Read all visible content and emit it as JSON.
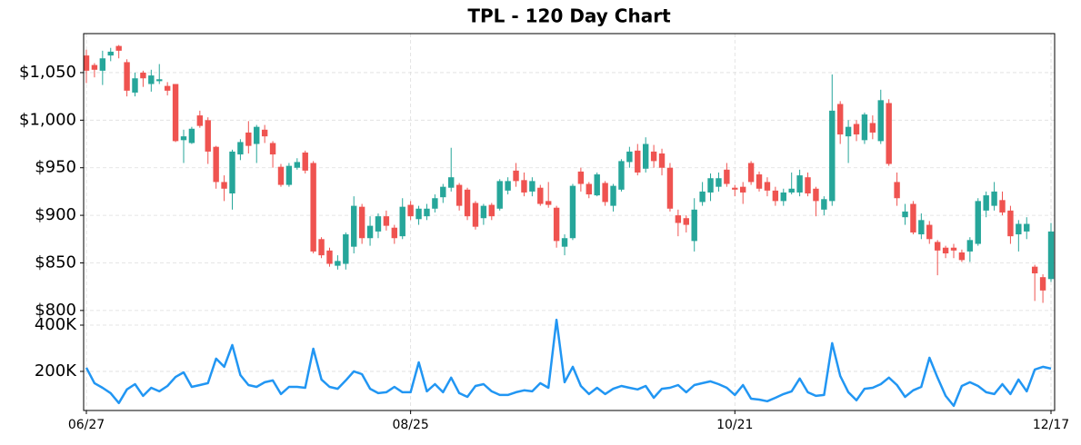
{
  "chart_data": [
    {
      "type": "candlestick",
      "title": "TPL - 120 Day Chart",
      "categories": [
        "06/27",
        null,
        null,
        null,
        null,
        null,
        null,
        null,
        null,
        null,
        null,
        null,
        null,
        null,
        null,
        null,
        null,
        null,
        null,
        null,
        null,
        null,
        null,
        null,
        null,
        null,
        null,
        null,
        null,
        null,
        null,
        null,
        null,
        null,
        null,
        null,
        null,
        null,
        null,
        null,
        "08/25",
        null,
        null,
        null,
        null,
        null,
        null,
        null,
        null,
        null,
        null,
        null,
        null,
        null,
        null,
        null,
        null,
        null,
        null,
        null,
        null,
        null,
        null,
        null,
        null,
        null,
        null,
        null,
        null,
        null,
        null,
        null,
        null,
        null,
        null,
        null,
        null,
        null,
        null,
        null,
        "10/21",
        null,
        null,
        null,
        null,
        null,
        null,
        null,
        null,
        null,
        null,
        null,
        null,
        null,
        null,
        null,
        null,
        null,
        null,
        null,
        null,
        null,
        null,
        null,
        null,
        null,
        null,
        null,
        null,
        null,
        null,
        null,
        null,
        null,
        null,
        null,
        null,
        null,
        null,
        "12/17"
      ],
      "open": [
        1068,
        1058,
        1052,
        1068,
        1078,
        1061,
        1029,
        1050,
        1038,
        1041,
        1036,
        1038,
        979,
        976,
        1005,
        1000,
        972,
        935,
        923,
        964,
        987,
        975,
        990,
        976,
        951,
        932,
        950,
        966,
        955,
        875,
        863,
        847,
        849,
        867,
        909,
        876,
        883,
        899,
        887,
        878,
        911,
        896,
        899,
        907,
        919,
        929,
        932,
        927,
        913,
        897,
        911,
        907,
        926,
        947,
        937,
        925,
        929,
        915,
        908,
        867,
        876,
        946,
        933,
        921,
        934,
        910,
        927,
        956,
        968,
        949,
        967,
        965,
        950,
        900,
        897,
        873,
        914,
        924,
        930,
        948,
        929,
        930,
        955,
        943,
        935,
        926,
        915,
        924,
        924,
        940,
        928,
        906,
        915,
        1017,
        983,
        996,
        979,
        997,
        978,
        1018,
        935,
        898,
        912,
        880,
        890,
        872,
        866,
        866,
        861,
        862,
        870,
        905,
        910,
        916,
        905,
        880,
        883,
        846,
        835,
        833
      ],
      "high": [
        1074,
        1060,
        1073,
        1076,
        1079,
        1064,
        1050,
        1052,
        1053,
        1059,
        1040,
        1038,
        990,
        993,
        1010,
        1003,
        973,
        942,
        969,
        980,
        999,
        995,
        995,
        978,
        954,
        955,
        960,
        968,
        957,
        877,
        866,
        858,
        882,
        920,
        912,
        899,
        902,
        905,
        890,
        918,
        915,
        910,
        912,
        922,
        933,
        971,
        934,
        929,
        915,
        912,
        913,
        938,
        940,
        955,
        945,
        940,
        932,
        935,
        910,
        880,
        933,
        950,
        935,
        945,
        936,
        933,
        959,
        972,
        975,
        982,
        974,
        970,
        955,
        906,
        900,
        918,
        935,
        944,
        945,
        955,
        932,
        935,
        957,
        946,
        940,
        930,
        928,
        945,
        948,
        945,
        930,
        920,
        1048,
        1020,
        1000,
        1000,
        1008,
        1005,
        1032,
        1022,
        945,
        912,
        915,
        902,
        894,
        874,
        868,
        870,
        864,
        877,
        918,
        925,
        935,
        925,
        910,
        895,
        898,
        848,
        838,
        892
      ],
      "low": [
        1039,
        1045,
        1037,
        1062,
        1065,
        1025,
        1025,
        1035,
        1030,
        1038,
        1026,
        977,
        955,
        975,
        992,
        954,
        928,
        915,
        906,
        958,
        965,
        955,
        976,
        950,
        930,
        930,
        948,
        944,
        860,
        855,
        846,
        843,
        843,
        860,
        870,
        868,
        876,
        884,
        870,
        875,
        895,
        890,
        895,
        903,
        913,
        925,
        905,
        895,
        885,
        890,
        895,
        905,
        922,
        930,
        920,
        920,
        910,
        908,
        866,
        858,
        874,
        925,
        918,
        920,
        910,
        904,
        925,
        950,
        942,
        945,
        950,
        942,
        904,
        878,
        882,
        862,
        910,
        915,
        925,
        930,
        920,
        912,
        932,
        925,
        920,
        910,
        910,
        922,
        920,
        920,
        899,
        900,
        910,
        975,
        955,
        978,
        975,
        980,
        975,
        952,
        910,
        890,
        880,
        875,
        870,
        837,
        855,
        855,
        851,
        851,
        868,
        898,
        905,
        900,
        870,
        862,
        875,
        810,
        808,
        830
      ],
      "close": [
        1052,
        1053,
        1065,
        1072,
        1073,
        1031,
        1044,
        1044,
        1047,
        1043,
        1031,
        978,
        983,
        991,
        994,
        967,
        935,
        928,
        967,
        977,
        973,
        993,
        983,
        964,
        932,
        952,
        956,
        947,
        862,
        858,
        849,
        852,
        880,
        910,
        876,
        889,
        899,
        889,
        876,
        909,
        899,
        907,
        907,
        918,
        930,
        940,
        910,
        899,
        888,
        910,
        899,
        936,
        936,
        936,
        924,
        936,
        912,
        911,
        873,
        876,
        931,
        933,
        922,
        943,
        914,
        931,
        957,
        967,
        945,
        975,
        957,
        950,
        907,
        892,
        890,
        906,
        925,
        939,
        939,
        933,
        927,
        924,
        935,
        928,
        926,
        915,
        924,
        928,
        942,
        923,
        915,
        917,
        1010,
        985,
        993,
        985,
        1006,
        987,
        1021,
        954,
        918,
        904,
        882,
        895,
        875,
        863,
        860,
        863,
        853,
        874,
        915,
        921,
        925,
        903,
        878,
        891,
        891,
        839,
        821,
        883
      ],
      "up_color": "#26a69a",
      "down_color": "#ef5350",
      "ylim": [
        797,
        1091
      ],
      "yticks": [
        {
          "value": 800,
          "label": "$800"
        },
        {
          "value": 850,
          "label": "$850"
        },
        {
          "value": 900,
          "label": "$900"
        },
        {
          "value": 950,
          "label": "$950"
        },
        {
          "value": 1000,
          "label": "$1,000"
        },
        {
          "value": 1050,
          "label": "$1,050"
        }
      ],
      "grid": true
    },
    {
      "type": "line",
      "values": [
        216000,
        149000,
        129000,
        106000,
        63000,
        122000,
        145000,
        94000,
        129000,
        114000,
        137000,
        176000,
        196000,
        133000,
        141000,
        149000,
        255000,
        220000,
        314000,
        184000,
        141000,
        133000,
        153000,
        161000,
        102000,
        133000,
        133000,
        129000,
        298000,
        165000,
        133000,
        125000,
        161000,
        200000,
        188000,
        125000,
        106000,
        110000,
        133000,
        110000,
        110000,
        239000,
        114000,
        145000,
        110000,
        173000,
        106000,
        90000,
        137000,
        145000,
        114000,
        98000,
        98000,
        110000,
        118000,
        114000,
        149000,
        129000,
        423000,
        153000,
        220000,
        137000,
        102000,
        129000,
        102000,
        125000,
        137000,
        129000,
        122000,
        137000,
        86000,
        125000,
        129000,
        141000,
        110000,
        141000,
        149000,
        157000,
        145000,
        129000,
        98000,
        141000,
        82000,
        78000,
        71000,
        86000,
        102000,
        114000,
        169000,
        110000,
        94000,
        98000,
        322000,
        180000,
        110000,
        75000,
        125000,
        129000,
        145000,
        173000,
        141000,
        90000,
        118000,
        133000,
        259000,
        173000,
        94000,
        51000,
        137000,
        153000,
        137000,
        110000,
        102000,
        145000,
        102000,
        165000,
        114000,
        208000,
        220000,
        212000
      ],
      "color": "#2196f3",
      "ylim": [
        31000,
        451000
      ],
      "yticks": [
        {
          "value": 200000,
          "label": "200K"
        },
        {
          "value": 400000,
          "label": "400K"
        }
      ],
      "grid": true
    }
  ]
}
